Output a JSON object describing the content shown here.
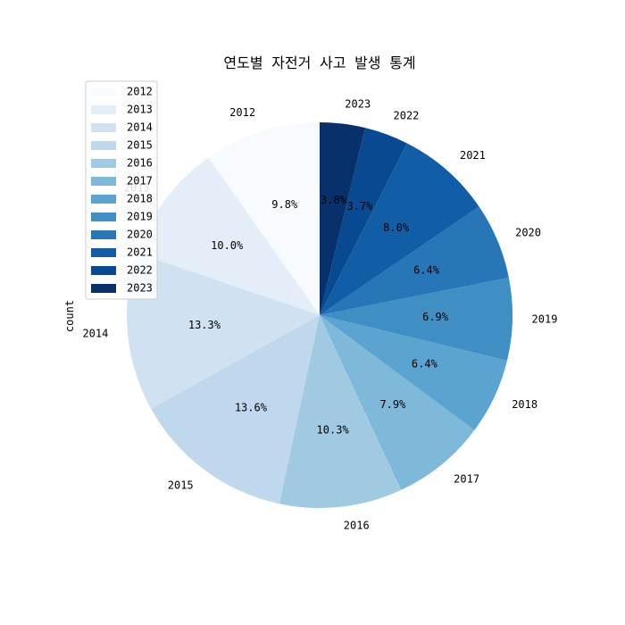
{
  "chart_data": {
    "type": "pie",
    "title": "연도별 자전거 사고 발생 통계",
    "ylabel": "count",
    "categories": [
      "2012",
      "2013",
      "2014",
      "2015",
      "2016",
      "2017",
      "2018",
      "2019",
      "2020",
      "2021",
      "2022",
      "2023"
    ],
    "values": [
      9.8,
      10.0,
      13.3,
      13.6,
      10.3,
      7.9,
      6.4,
      6.9,
      6.4,
      8.0,
      3.7,
      3.8
    ],
    "percent_labels": [
      "9.8%",
      "10.0%",
      "13.3%",
      "13.6%",
      "10.3%",
      "7.9%",
      "6.4%",
      "6.9%",
      "6.4%",
      "8.0%",
      "3.7%",
      "3.8%"
    ],
    "colors": [
      "#f7fbff",
      "#e3eef9",
      "#d0e1f2",
      "#bfd8ed",
      "#a0cae1",
      "#7fb9da",
      "#5ba3d0",
      "#3f8fc5",
      "#2676b8",
      "#125ea6",
      "#084a91",
      "#08306b"
    ],
    "start_angle_deg": 90,
    "direction": "counterclockwise",
    "legend": {
      "position": "top-left",
      "entries": [
        "2012",
        "2013",
        "2014",
        "2015",
        "2016",
        "2017",
        "2018",
        "2019",
        "2020",
        "2021",
        "2022",
        "2023"
      ]
    }
  }
}
